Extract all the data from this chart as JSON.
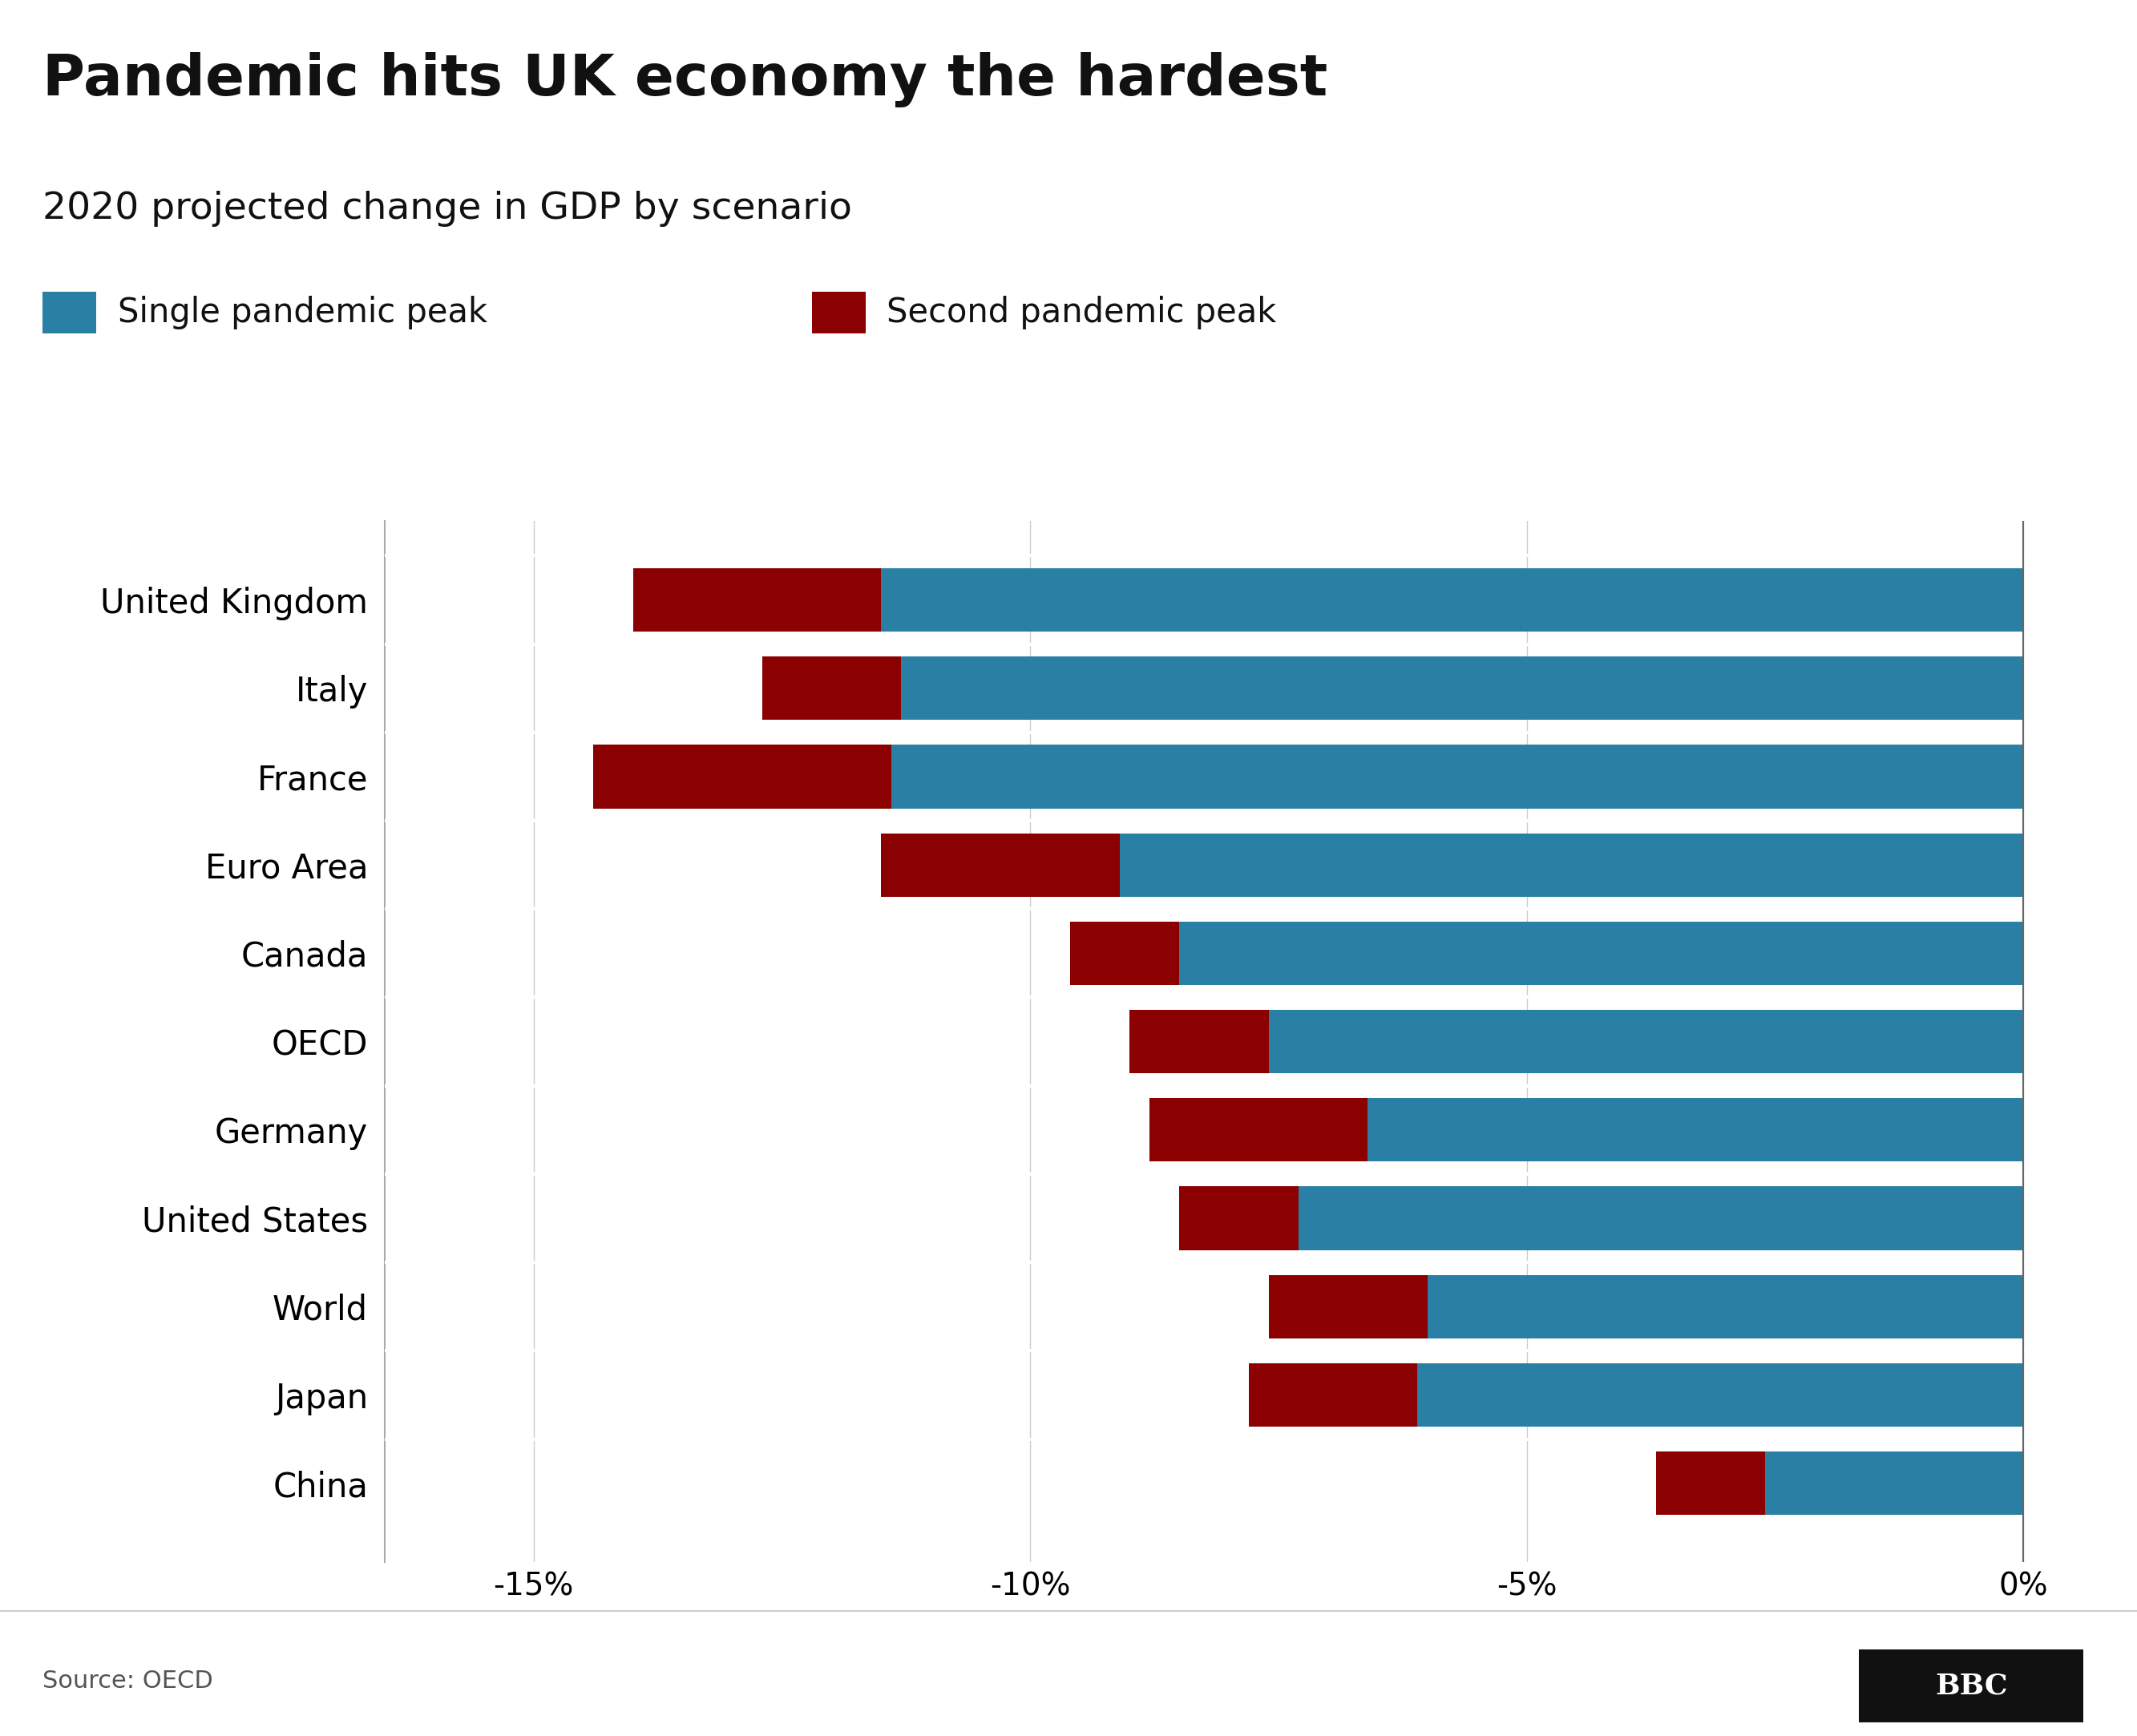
{
  "title": "Pandemic hits UK economy the hardest",
  "subtitle": "2020 projected change in GDP by scenario",
  "legend_single": "Single pandemic peak",
  "legend_second": "Second pandemic peak",
  "source": "Source: OECD",
  "categories": [
    "United Kingdom",
    "Italy",
    "France",
    "Euro Area",
    "Canada",
    "OECD",
    "Germany",
    "United States",
    "World",
    "Japan",
    "China"
  ],
  "single_peak": [
    -11.5,
    -11.3,
    -11.4,
    -9.1,
    -8.5,
    -7.6,
    -6.6,
    -7.3,
    -6.0,
    -6.1,
    -2.6
  ],
  "second_peak": [
    -14.0,
    -12.7,
    -14.4,
    -11.5,
    -9.6,
    -9.0,
    -8.8,
    -8.5,
    -7.6,
    -7.8,
    -3.7
  ],
  "color_single": "#2a7fa5",
  "color_second": "#8b0000",
  "background_color": "#ffffff",
  "bar_height": 0.72,
  "xlim": [
    -16.5,
    0.5
  ],
  "xticks": [
    -15,
    -10,
    -5,
    0
  ],
  "xticklabels": [
    "-15%",
    "-10%",
    "-5%",
    "0%"
  ],
  "title_fontsize": 52,
  "subtitle_fontsize": 34,
  "label_fontsize": 30,
  "tick_fontsize": 28,
  "legend_fontsize": 30,
  "source_fontsize": 22
}
